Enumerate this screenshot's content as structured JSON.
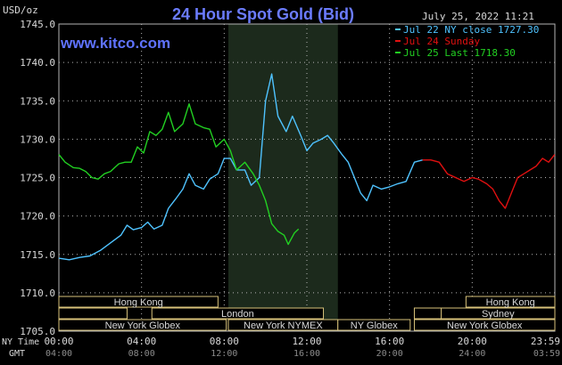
{
  "header": {
    "title": "24 Hour Spot Gold (Bid)",
    "unit": "USD/oz",
    "site": "www.kitco.com",
    "datetime": "July 25, 2022 11:21"
  },
  "colors": {
    "background": "#000000",
    "grid": "#b5b5b5",
    "nymex_band": "#1c2a1c",
    "series_blue": "#4fc3ff",
    "series_red": "#e01010",
    "series_green": "#22d022",
    "session_box": "#d8c27a",
    "text": "#d9d9d9"
  },
  "axis": {
    "ny_time_label": "NY Time",
    "gmt_label": "GMT"
  },
  "sessions": [
    {
      "label": "Hong Kong",
      "row": 0,
      "start": 0,
      "end": 7.7
    },
    {
      "label": "London",
      "row": 1,
      "start": 4.5,
      "end": 12.8
    },
    {
      "label": "New York Globex",
      "row": 2,
      "start": 0,
      "end": 8.1
    },
    {
      "label": "New York NYMEX",
      "row": 2,
      "start": 8.2,
      "end": 13.5
    },
    {
      "label": "NY Globex",
      "row": 2,
      "start": 13.5,
      "end": 17
    },
    {
      "label": "Hong Kong",
      "row": 0,
      "start": 19.7,
      "end": 24
    },
    {
      "label": "Sydney",
      "row": 1,
      "start": 18.5,
      "end": 24
    },
    {
      "label": "New York Globex",
      "row": 2,
      "start": 17.2,
      "end": 24
    },
    {
      "label": "",
      "row": 1,
      "start": 0,
      "end": 3.3
    },
    {
      "label": "",
      "row": 1,
      "start": 17.2,
      "end": 18.5
    }
  ],
  "chart_data": {
    "type": "line",
    "title": "24 Hour Spot Gold (Bid)",
    "ylabel": "USD/oz",
    "ylim": [
      1705.0,
      1745.0
    ],
    "yticks": [
      "1745.0",
      "1740.0",
      "1735.0",
      "1730.0",
      "1725.0",
      "1720.0",
      "1715.0",
      "1710.0",
      "1705.0"
    ],
    "xlim": [
      0,
      24
    ],
    "xticks_ny": [
      "00:00",
      "04:00",
      "08:00",
      "12:00",
      "16:00",
      "20:00",
      "23:59"
    ],
    "xticks_gmt": [
      "04:00",
      "08:00",
      "12:00",
      "16:00",
      "20:00",
      "24:00",
      "03:59"
    ],
    "grid": true,
    "legend_position": "top-right",
    "nymex_band": [
      8.2,
      13.5
    ],
    "series": [
      {
        "name": "Jul 22 NY close 1727.30",
        "color": "#4fc3ff",
        "points": [
          [
            0.0,
            1714.5
          ],
          [
            0.5,
            1714.3
          ],
          [
            1.0,
            1714.6
          ],
          [
            1.5,
            1714.8
          ],
          [
            2.0,
            1715.5
          ],
          [
            2.5,
            1716.5
          ],
          [
            3.0,
            1717.5
          ],
          [
            3.3,
            1718.8
          ],
          [
            3.6,
            1718.2
          ],
          [
            4.0,
            1718.5
          ],
          [
            4.3,
            1719.2
          ],
          [
            4.6,
            1718.3
          ],
          [
            5.0,
            1718.8
          ],
          [
            5.3,
            1721.0
          ],
          [
            5.7,
            1722.4
          ],
          [
            6.0,
            1723.5
          ],
          [
            6.3,
            1725.5
          ],
          [
            6.6,
            1724.0
          ],
          [
            7.0,
            1723.5
          ],
          [
            7.3,
            1724.8
          ],
          [
            7.7,
            1725.5
          ],
          [
            8.0,
            1727.5
          ],
          [
            8.3,
            1727.5
          ],
          [
            8.6,
            1726.0
          ],
          [
            9.0,
            1726.0
          ],
          [
            9.3,
            1724.0
          ],
          [
            9.7,
            1725.0
          ],
          [
            10.0,
            1735.0
          ],
          [
            10.3,
            1738.5
          ],
          [
            10.6,
            1733.0
          ],
          [
            11.0,
            1731.0
          ],
          [
            11.3,
            1733.0
          ],
          [
            11.7,
            1730.5
          ],
          [
            12.0,
            1728.5
          ],
          [
            12.3,
            1729.5
          ],
          [
            12.7,
            1730.0
          ],
          [
            13.0,
            1730.5
          ],
          [
            13.3,
            1729.5
          ],
          [
            13.7,
            1728.0
          ],
          [
            14.0,
            1727.0
          ],
          [
            14.3,
            1725.0
          ],
          [
            14.6,
            1723.0
          ],
          [
            14.9,
            1722.0
          ],
          [
            15.2,
            1724.0
          ],
          [
            15.6,
            1723.5
          ],
          [
            16.0,
            1723.8
          ],
          [
            16.4,
            1724.2
          ],
          [
            16.8,
            1724.5
          ],
          [
            17.2,
            1727.0
          ],
          [
            17.6,
            1727.3
          ]
        ]
      },
      {
        "name": "Jul 24 Sunday",
        "color": "#e01010",
        "points": [
          [
            17.6,
            1727.3
          ],
          [
            18.0,
            1727.3
          ],
          [
            18.4,
            1727.0
          ],
          [
            18.8,
            1725.5
          ],
          [
            19.2,
            1725.0
          ],
          [
            19.6,
            1724.5
          ],
          [
            20.0,
            1725.0
          ],
          [
            20.3,
            1724.8
          ],
          [
            20.7,
            1724.2
          ],
          [
            21.0,
            1723.5
          ],
          [
            21.3,
            1722.0
          ],
          [
            21.6,
            1721.0
          ],
          [
            21.9,
            1723.0
          ],
          [
            22.2,
            1725.0
          ],
          [
            22.5,
            1725.5
          ],
          [
            22.8,
            1726.0
          ],
          [
            23.1,
            1726.5
          ],
          [
            23.4,
            1727.5
          ],
          [
            23.7,
            1727.0
          ],
          [
            23.99,
            1728.0
          ]
        ]
      },
      {
        "name": "Jul 25 Last 1718.30",
        "color": "#22d022",
        "points": [
          [
            0.0,
            1728.0
          ],
          [
            0.3,
            1727.0
          ],
          [
            0.7,
            1726.3
          ],
          [
            1.0,
            1726.2
          ],
          [
            1.3,
            1725.8
          ],
          [
            1.6,
            1725.0
          ],
          [
            1.9,
            1724.8
          ],
          [
            2.2,
            1725.5
          ],
          [
            2.5,
            1725.8
          ],
          [
            2.9,
            1726.8
          ],
          [
            3.2,
            1727.0
          ],
          [
            3.5,
            1727.0
          ],
          [
            3.8,
            1729.0
          ],
          [
            4.1,
            1728.2
          ],
          [
            4.4,
            1731.0
          ],
          [
            4.7,
            1730.5
          ],
          [
            5.0,
            1731.3
          ],
          [
            5.3,
            1733.5
          ],
          [
            5.6,
            1731.0
          ],
          [
            6.0,
            1732.0
          ],
          [
            6.3,
            1734.6
          ],
          [
            6.6,
            1732.0
          ],
          [
            7.0,
            1731.5
          ],
          [
            7.3,
            1731.3
          ],
          [
            7.6,
            1729.0
          ],
          [
            8.0,
            1730.0
          ],
          [
            8.3,
            1728.5
          ],
          [
            8.6,
            1726.0
          ],
          [
            9.0,
            1727.0
          ],
          [
            9.4,
            1725.5
          ],
          [
            9.7,
            1724.0
          ],
          [
            10.0,
            1722.0
          ],
          [
            10.3,
            1719.0
          ],
          [
            10.6,
            1718.0
          ],
          [
            10.9,
            1717.5
          ],
          [
            11.1,
            1716.3
          ],
          [
            11.4,
            1717.8
          ],
          [
            11.6,
            1718.3
          ]
        ]
      }
    ]
  }
}
